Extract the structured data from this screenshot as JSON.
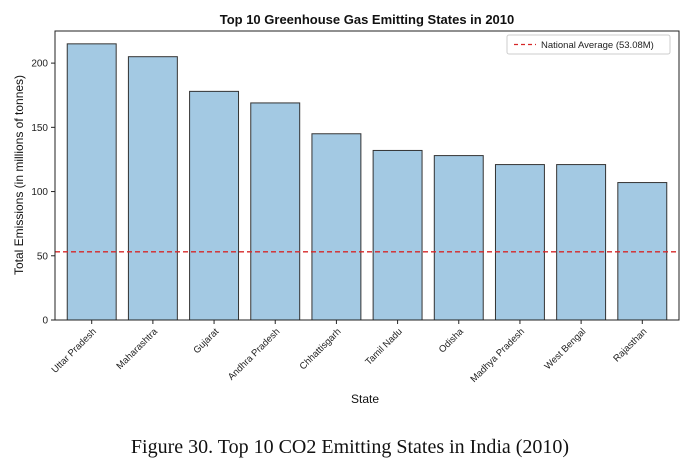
{
  "caption": "Figure 30.  Top 10 CO2 Emitting States in India (2010)",
  "chart_data": {
    "type": "bar",
    "title": "Top 10 Greenhouse Gas Emitting States in 2010",
    "xlabel": "State",
    "ylabel": "Total Emissions (in millions of tonnes)",
    "categories": [
      "Uttar Pradesh",
      "Maharashtra",
      "Gujarat",
      "Andhra Pradesh",
      "Chhattisgarh",
      "Tamil Nadu",
      "Odisha",
      "Madhya Pradesh",
      "West Bengal",
      "Rajasthan"
    ],
    "values": [
      215,
      205,
      178,
      169,
      145,
      132,
      128,
      121,
      121,
      107
    ],
    "ylim": [
      0,
      225
    ],
    "yticks": [
      0,
      50,
      100,
      150,
      200
    ],
    "grid": false,
    "bar_color": "#a3c9e3",
    "bar_edge_color": "#333333",
    "reference_line": {
      "value": 53.08,
      "label": "National Average (53.08M)",
      "color": "#d62728",
      "style": "dashed"
    },
    "legend_position": "top-right"
  }
}
